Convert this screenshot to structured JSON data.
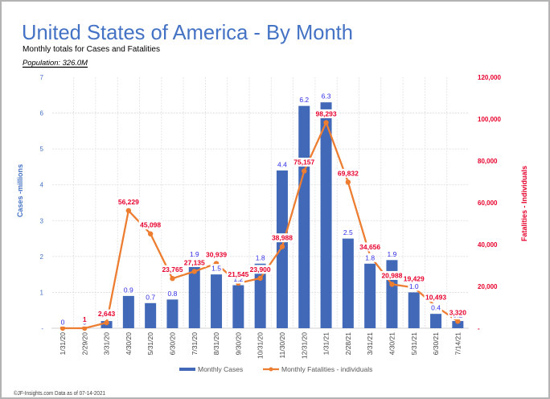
{
  "page": {
    "title": "United States of America - By Month",
    "subtitle": "Monthly totals for Cases and Fatalities",
    "population": "Population: 326.0M",
    "footer": "©JF-Insights.com  Data as of 07-14-2021"
  },
  "chart_data": {
    "type": "bar",
    "title": "United States of America - By Month",
    "subtitle": "Monthly totals for Cases and Fatalities",
    "categories": [
      "1/31/20",
      "2/29/20",
      "3/31/20",
      "4/30/20",
      "5/31/20",
      "6/30/20",
      "7/31/20",
      "8/31/20",
      "9/30/20",
      "10/31/20",
      "11/30/20",
      "12/31/20",
      "1/31/21",
      "2/28/21",
      "3/31/21",
      "4/30/21",
      "5/31/21",
      "6/30/21",
      "7/14/21"
    ],
    "series": [
      {
        "name": "Monthly Cases",
        "type": "bar",
        "axis": "left",
        "unit": "millions",
        "values": [
          0,
          0,
          0.2,
          0.9,
          0.7,
          0.8,
          1.9,
          1.5,
          1.2,
          1.8,
          4.4,
          6.2,
          6.3,
          2.5,
          1.8,
          1.9,
          1.0,
          0.4,
          0.2
        ],
        "labels": [
          "0",
          "0",
          "0.2",
          "0.9",
          "0.7",
          "0.8",
          "1.9",
          "1.5",
          "1.2",
          "1.8",
          "4.4",
          "6.2",
          "6.3",
          "2.5",
          "1.8",
          "1.9",
          "1.0",
          "0.4",
          "0.2"
        ],
        "color": "#4169b8"
      },
      {
        "name": "Monthly Fatalities - individuals",
        "type": "line",
        "axis": "right",
        "unit": "individuals",
        "values": [
          0,
          1,
          2643,
          56229,
          45098,
          23765,
          27135,
          30939,
          21545,
          23900,
          38988,
          75157,
          98293,
          69832,
          34656,
          20988,
          19429,
          10493,
          3320
        ],
        "labels": [
          "",
          "1",
          "2,643",
          "56,229",
          "45,098",
          "23,765",
          "27,135",
          "30,939",
          "21,545",
          "23,900",
          "38,988",
          "75,157",
          "98,293",
          "69,832",
          "34,656",
          "20,988",
          "19,429",
          "10,493",
          "3,320"
        ],
        "color": "#ed7d31"
      }
    ],
    "xlabel": "",
    "ylabel": "Cases -millions",
    "y2label": "Fatalities - Individuals",
    "ylim": [
      0,
      7
    ],
    "y2lim": [
      0,
      120000
    ],
    "y_ticks": [
      {
        "value": 0,
        "label": "-"
      },
      {
        "value": 1,
        "label": "1"
      },
      {
        "value": 2,
        "label": "2"
      },
      {
        "value": 3,
        "label": "3"
      },
      {
        "value": 4,
        "label": "4"
      },
      {
        "value": 5,
        "label": "5"
      },
      {
        "value": 6,
        "label": "6"
      },
      {
        "value": 7,
        "label": "7"
      }
    ],
    "y2_ticks": [
      {
        "value": 0,
        "label": "-"
      },
      {
        "value": 20000,
        "label": "20,000"
      },
      {
        "value": 40000,
        "label": "40,000"
      },
      {
        "value": 60000,
        "label": "60,000"
      },
      {
        "value": 80000,
        "label": "80,000"
      },
      {
        "value": 100000,
        "label": "100,000"
      },
      {
        "value": 120000,
        "label": "120,000"
      }
    ],
    "grid": true,
    "legend": "bottom",
    "legend_entries": [
      "Monthly Cases",
      "Monthly Fatalities - individuals"
    ]
  }
}
